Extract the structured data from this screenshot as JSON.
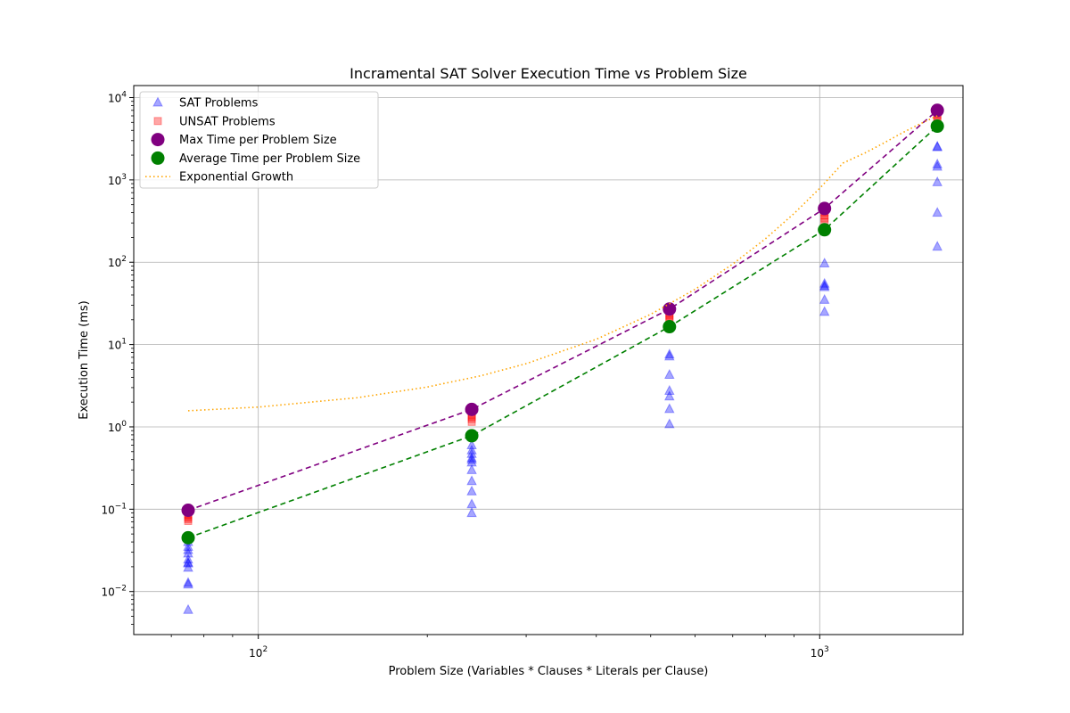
{
  "chart_data": {
    "type": "scatter",
    "title": "Incramental SAT Solver Execution Time vs Problem Size",
    "xlabel": "Problem Size (Variables * Clauses * Literals per Clause)",
    "ylabel": "Execution Time (ms)",
    "xscale": "log",
    "yscale": "log",
    "xlim": [
      60,
      1800
    ],
    "ylim": [
      0.003,
      14000
    ],
    "grid": true,
    "legend_position": "top-left",
    "x_ticks": [
      {
        "value": 100,
        "base": "10",
        "exp": "2"
      },
      {
        "value": 1000,
        "base": "10",
        "exp": "3"
      }
    ],
    "y_ticks": [
      {
        "value": 0.01,
        "base": "10",
        "exp": "−2"
      },
      {
        "value": 0.1,
        "base": "10",
        "exp": "−1"
      },
      {
        "value": 1,
        "base": "10",
        "exp": "0"
      },
      {
        "value": 10,
        "base": "10",
        "exp": "1"
      },
      {
        "value": 100,
        "base": "10",
        "exp": "2"
      },
      {
        "value": 1000,
        "base": "10",
        "exp": "3"
      },
      {
        "value": 10000,
        "base": "10",
        "exp": "4"
      }
    ],
    "problem_sizes": [
      75,
      240,
      540,
      1020,
      1620
    ],
    "series": [
      {
        "name": "SAT Problems",
        "kind": "scatter",
        "marker": "triangle",
        "color": "#0000ff",
        "opacity": 0.35,
        "points": [
          [
            75,
            0.006
          ],
          [
            75,
            0.0122
          ],
          [
            75,
            0.0128
          ],
          [
            75,
            0.0195
          ],
          [
            75,
            0.022
          ],
          [
            75,
            0.0225
          ],
          [
            75,
            0.0245
          ],
          [
            75,
            0.029
          ],
          [
            75,
            0.032
          ],
          [
            75,
            0.035
          ],
          [
            75,
            0.04
          ],
          [
            240,
            0.09
          ],
          [
            240,
            0.115
          ],
          [
            240,
            0.165
          ],
          [
            240,
            0.22
          ],
          [
            240,
            0.3
          ],
          [
            240,
            0.37
          ],
          [
            240,
            0.4
          ],
          [
            240,
            0.42
          ],
          [
            240,
            0.47
          ],
          [
            240,
            0.52
          ],
          [
            240,
            0.6
          ],
          [
            540,
            1.08
          ],
          [
            540,
            1.65
          ],
          [
            540,
            2.35
          ],
          [
            540,
            2.75
          ],
          [
            540,
            4.3
          ],
          [
            540,
            7.2
          ],
          [
            540,
            7.6
          ],
          [
            1020,
            25
          ],
          [
            1020,
            35
          ],
          [
            1020,
            50
          ],
          [
            1020,
            52
          ],
          [
            1020,
            55
          ],
          [
            1020,
            97
          ],
          [
            1620,
            155
          ],
          [
            1620,
            400
          ],
          [
            1620,
            940
          ],
          [
            1620,
            1450
          ],
          [
            1620,
            1550
          ],
          [
            1620,
            2500
          ],
          [
            1620,
            2550
          ]
        ]
      },
      {
        "name": "UNSAT Problems",
        "kind": "scatter",
        "marker": "square",
        "color": "#ff0000",
        "opacity": 0.35,
        "points": [
          [
            75,
            0.072
          ],
          [
            75,
            0.076
          ],
          [
            75,
            0.08
          ],
          [
            75,
            0.085
          ],
          [
            240,
            1.15
          ],
          [
            240,
            1.25
          ],
          [
            240,
            1.33
          ],
          [
            240,
            1.42
          ],
          [
            540,
            19.5
          ],
          [
            540,
            21
          ],
          [
            540,
            22.5
          ],
          [
            540,
            24
          ],
          [
            1020,
            310
          ],
          [
            1020,
            340
          ],
          [
            1020,
            370
          ],
          [
            1020,
            400
          ],
          [
            1620,
            5200
          ],
          [
            1620,
            5700
          ],
          [
            1620,
            6200
          ],
          [
            1620,
            6600
          ]
        ]
      },
      {
        "name": "Max Time per Problem Size",
        "kind": "line-markers",
        "marker": "circle",
        "color": "#800080",
        "points": [
          [
            75,
            0.097
          ],
          [
            240,
            1.63
          ],
          [
            540,
            27
          ],
          [
            1020,
            450
          ],
          [
            1620,
            7000
          ]
        ]
      },
      {
        "name": "Average Time per Problem Size",
        "kind": "line-markers",
        "marker": "circle",
        "color": "#008000",
        "points": [
          [
            75,
            0.045
          ],
          [
            240,
            0.78
          ],
          [
            540,
            16.5
          ],
          [
            1020,
            248
          ],
          [
            1620,
            4500
          ]
        ]
      },
      {
        "name": "Exponential Growth",
        "kind": "curve",
        "style": "dotted",
        "color": "#ffa500",
        "points": [
          [
            75,
            1.57
          ],
          [
            100,
            1.74
          ],
          [
            150,
            2.26
          ],
          [
            200,
            3.05
          ],
          [
            250,
            4.2
          ],
          [
            300,
            5.86
          ],
          [
            400,
            11.6
          ],
          [
            500,
            23.3
          ],
          [
            600,
            47
          ],
          [
            700,
            95
          ],
          [
            800,
            192
          ],
          [
            900,
            390
          ],
          [
            1000,
            790
          ],
          [
            1100,
            1600
          ],
          [
            1200,
            2100
          ],
          [
            1300,
            2800
          ],
          [
            1400,
            3700
          ],
          [
            1500,
            4700
          ],
          [
            1620,
            6000
          ]
        ]
      }
    ]
  }
}
